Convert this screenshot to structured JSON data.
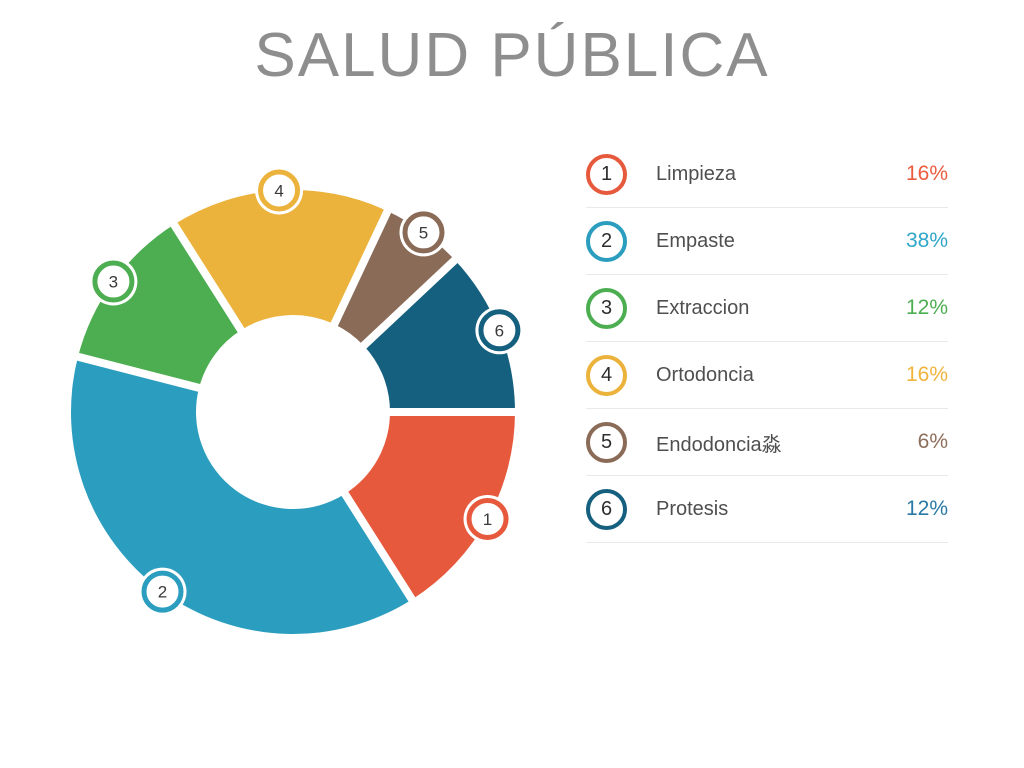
{
  "title": {
    "text": "SALUD PÚBLICA"
  },
  "chart_data": {
    "type": "pie",
    "donut": true,
    "title": "SALUD PÚBLICA",
    "start_angle_deg": 0,
    "direction": "clockwise",
    "legend_position": "right",
    "grid": false,
    "total": 100,
    "segments": [
      {
        "number": "1",
        "label": "Limpieza",
        "value": 16,
        "percent_label": "16%",
        "color": "#E6593C",
        "value_color": "#EB5B3E"
      },
      {
        "number": "2",
        "label": "Empaste",
        "value": 38,
        "percent_label": "38%",
        "color": "#2B9DBE",
        "value_color": "#2EA6C9"
      },
      {
        "number": "3",
        "label": "Extraccion",
        "value": 12,
        "percent_label": "12%",
        "color": "#4CAE51",
        "value_color": "#4CAE52"
      },
      {
        "number": "4",
        "label": "Ortodoncia",
        "value": 16,
        "percent_label": "16%",
        "color": "#EBB23C",
        "value_color": "#F0B43C"
      },
      {
        "number": "5",
        "label": "Endodoncia淼",
        "value": 6,
        "percent_label": "6%",
        "color": "#8A6B57",
        "value_color": "#8D6E5A"
      },
      {
        "number": "6",
        "label": "Protesis",
        "value": 12,
        "percent_label": "12%",
        "color": "#15607E",
        "value_color": "#2879A6"
      }
    ]
  }
}
